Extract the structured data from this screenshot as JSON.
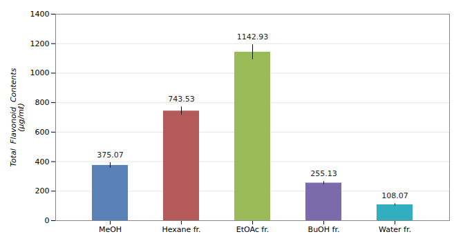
{
  "chart_data": {
    "type": "bar",
    "categories": [
      "MeOH",
      "Hexane fr.",
      "EtOAc fr.",
      "BuOH fr.",
      "Water fr."
    ],
    "values": [
      375.07,
      743.53,
      1142.93,
      255.13,
      108.07
    ],
    "errors": [
      18,
      28,
      50,
      10,
      7
    ],
    "colors": [
      "#5b82b8",
      "#b55a5a",
      "#9bbb59",
      "#7b6bad",
      "#31afc0"
    ],
    "ylabel": "Total  Flavonoid  Contents\n(μg/mℓ)",
    "ylim": [
      0,
      1400
    ],
    "yticks": [
      0,
      200,
      400,
      600,
      800,
      1000,
      1200,
      1400
    ],
    "grid": true,
    "data_labels": true
  }
}
